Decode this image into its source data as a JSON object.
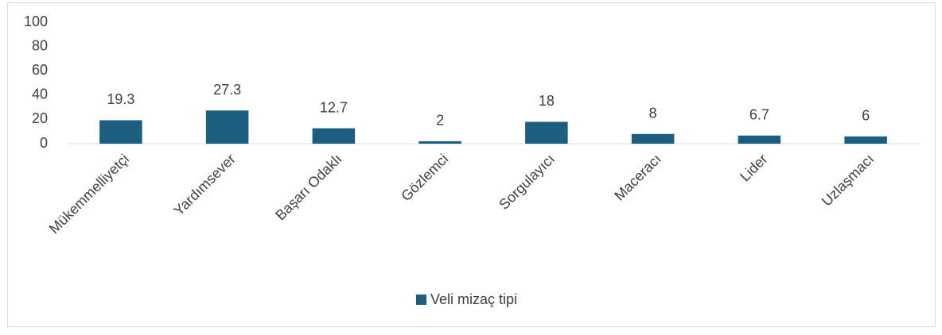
{
  "chart_data": {
    "type": "bar",
    "categories": [
      "Mükemmelliyetçi",
      "Yardımsever",
      "Başarı Odaklı",
      "Gözlemci",
      "Sorgulayıcı",
      "Maceracı",
      "Lider",
      "Uzlaşmacı"
    ],
    "series": [
      {
        "name": "Veli mizaç tipi",
        "color": "#1b5e80",
        "values": [
          19.3,
          27.3,
          12.7,
          2,
          18,
          8,
          6.7,
          6
        ]
      }
    ],
    "ylim": [
      0,
      100
    ],
    "yticks": [
      0,
      20,
      40,
      60,
      80,
      100
    ],
    "grid": false,
    "legend": "bottom"
  }
}
